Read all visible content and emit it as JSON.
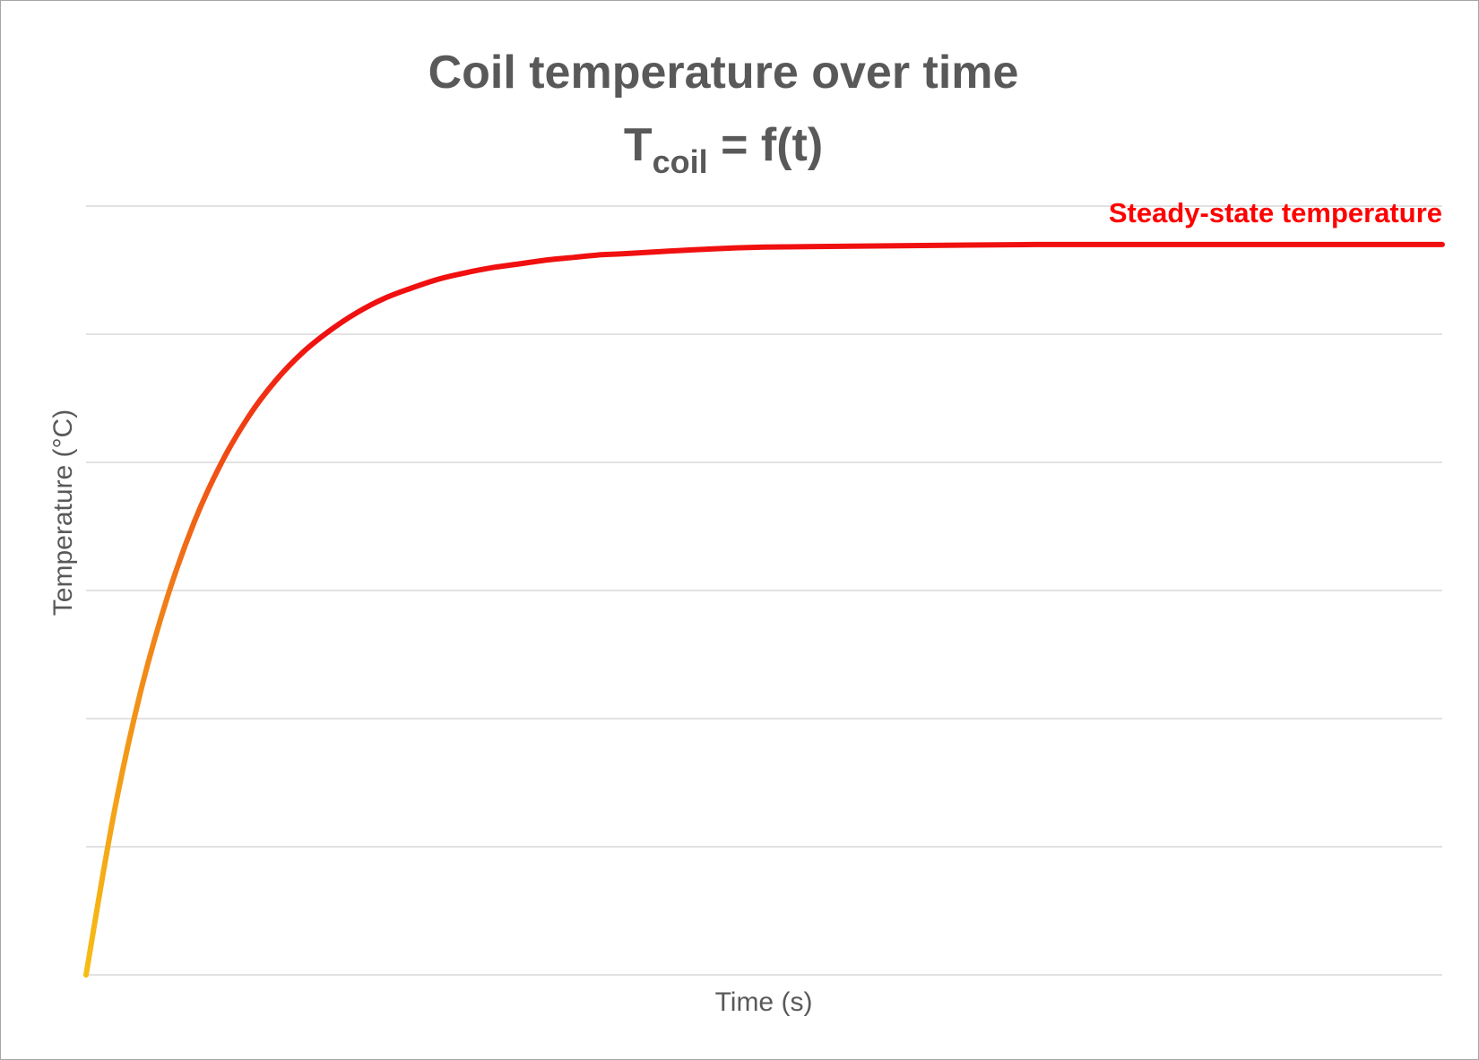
{
  "chart_data": {
    "type": "line",
    "title": "Coil temperature over time",
    "subtitle": {
      "main": "T",
      "subscript": "coil",
      "rest": " = f(t)"
    },
    "xlabel": "Time (s)",
    "ylabel": "Temperature (°C)",
    "xlim": [
      0,
      1
    ],
    "ylim": [
      0,
      6
    ],
    "grid": true,
    "gridlines_y": [
      0,
      1,
      2,
      3,
      4,
      5,
      6
    ],
    "tick_labels_shown": false,
    "series": [
      {
        "x": [
          0,
          0.02,
          0.04,
          0.06,
          0.08,
          0.1,
          0.12,
          0.14,
          0.16,
          0.18,
          0.2,
          0.22,
          0.24,
          0.26,
          0.28,
          0.3,
          0.32,
          0.34,
          0.36,
          0.38,
          0.4,
          0.45,
          0.5,
          0.6,
          0.7,
          0.8,
          0.9,
          1.0
        ],
        "y": [
          0,
          1.23,
          2.2,
          2.95,
          3.54,
          4.0,
          4.36,
          4.64,
          4.86,
          5.03,
          5.17,
          5.28,
          5.36,
          5.43,
          5.48,
          5.52,
          5.55,
          5.58,
          5.6,
          5.62,
          5.63,
          5.66,
          5.68,
          5.69,
          5.7,
          5.7,
          5.7,
          5.7
        ],
        "color_start": "#f6bd16",
        "color_mid": "#f07b18",
        "color_end": "#f01010"
      }
    ],
    "annotations": [
      {
        "text": "Steady-state temperature",
        "color": "#ff0000",
        "anchor": "right",
        "at_y": 5.7
      }
    ]
  },
  "colors": {
    "gridline": "#d9d9d9",
    "text": "#595959",
    "border": "#a6a6a6"
  }
}
